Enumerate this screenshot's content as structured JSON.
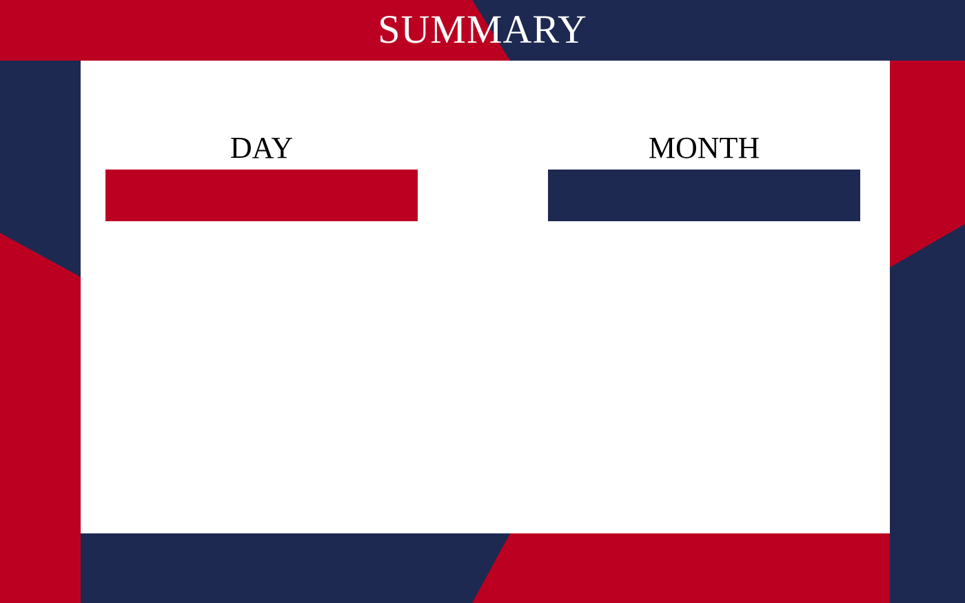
{
  "header": {
    "title": "SUMMARY"
  },
  "columns": [
    {
      "id": "day",
      "heading": "DAY",
      "bar_color": "#bb0021"
    },
    {
      "id": "month",
      "heading": "MONTH",
      "bar_color": "#1d2951"
    }
  ],
  "colors": {
    "red": "#bb0021",
    "navy": "#1d2951",
    "white": "#ffffff"
  }
}
